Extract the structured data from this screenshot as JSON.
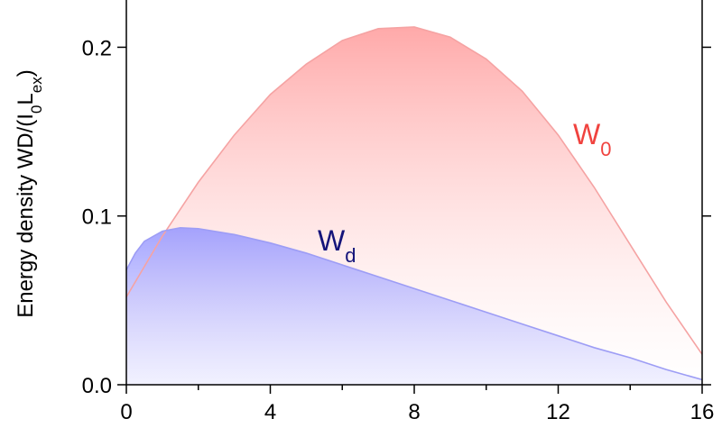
{
  "chart_data": {
    "type": "area",
    "ylabel": [
      "Energy density WD/(I",
      "0",
      "L",
      "ex",
      ")"
    ],
    "x": [
      0,
      0.25,
      0.5,
      1,
      1.5,
      2,
      3,
      4,
      5,
      6,
      7,
      8,
      9,
      10,
      11,
      12,
      13,
      14,
      15,
      16
    ],
    "series": [
      {
        "label": {
          "text": "W",
          "sub": "0"
        },
        "color": "#f5a3a3",
        "label_color": "#f0433f",
        "values": [
          0.052,
          0.061,
          0.07,
          0.088,
          0.104,
          0.12,
          0.148,
          0.172,
          0.19,
          0.204,
          0.211,
          0.212,
          0.206,
          0.193,
          0.174,
          0.148,
          0.117,
          0.083,
          0.049,
          0.018
        ]
      },
      {
        "label": {
          "text": "W",
          "sub": "d"
        },
        "color": "#9d9df5",
        "label_color": "#14147a",
        "values": [
          0.068,
          0.078,
          0.085,
          0.091,
          0.093,
          0.0925,
          0.089,
          0.084,
          0.078,
          0.071,
          0.064,
          0.057,
          0.05,
          0.043,
          0.036,
          0.029,
          0.022,
          0.016,
          0.009,
          0.003
        ]
      }
    ],
    "xlim": [
      0,
      16
    ],
    "xticks": [
      0,
      4,
      8,
      12,
      16
    ],
    "xminorticks": [
      2,
      6,
      10,
      14
    ],
    "ylim": [
      0,
      0.228
    ],
    "yticks": [
      {
        "value": 0,
        "label": "0.0"
      },
      0.1,
      0.2
    ]
  }
}
